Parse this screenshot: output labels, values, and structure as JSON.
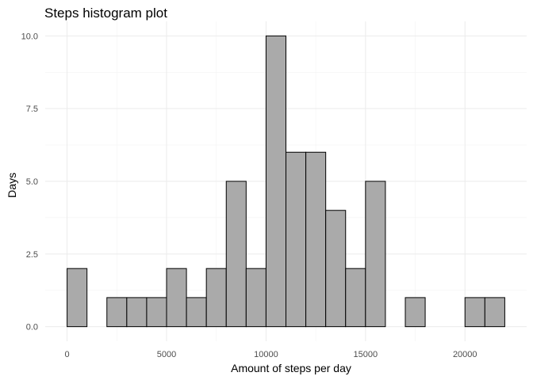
{
  "chart_data": {
    "type": "bar",
    "title": "Steps histogram plot",
    "xlabel": "Amount of steps per day",
    "ylabel": "Days",
    "bin_width": 1000,
    "bins": [
      {
        "x_start": 0,
        "x_end": 1000,
        "count": 2
      },
      {
        "x_start": 1000,
        "x_end": 2000,
        "count": 0
      },
      {
        "x_start": 2000,
        "x_end": 3000,
        "count": 1
      },
      {
        "x_start": 3000,
        "x_end": 4000,
        "count": 1
      },
      {
        "x_start": 4000,
        "x_end": 5000,
        "count": 1
      },
      {
        "x_start": 5000,
        "x_end": 6000,
        "count": 2
      },
      {
        "x_start": 6000,
        "x_end": 7000,
        "count": 1
      },
      {
        "x_start": 7000,
        "x_end": 8000,
        "count": 2
      },
      {
        "x_start": 8000,
        "x_end": 9000,
        "count": 5
      },
      {
        "x_start": 9000,
        "x_end": 10000,
        "count": 2
      },
      {
        "x_start": 10000,
        "x_end": 11000,
        "count": 10
      },
      {
        "x_start": 11000,
        "x_end": 12000,
        "count": 6
      },
      {
        "x_start": 12000,
        "x_end": 13000,
        "count": 6
      },
      {
        "x_start": 13000,
        "x_end": 14000,
        "count": 4
      },
      {
        "x_start": 14000,
        "x_end": 15000,
        "count": 2
      },
      {
        "x_start": 15000,
        "x_end": 16000,
        "count": 5
      },
      {
        "x_start": 16000,
        "x_end": 17000,
        "count": 0
      },
      {
        "x_start": 17000,
        "x_end": 18000,
        "count": 1
      },
      {
        "x_start": 18000,
        "x_end": 19000,
        "count": 0
      },
      {
        "x_start": 19000,
        "x_end": 20000,
        "count": 0
      },
      {
        "x_start": 20000,
        "x_end": 21000,
        "count": 1
      },
      {
        "x_start": 21000,
        "x_end": 22000,
        "count": 1
      }
    ],
    "xlim": [
      -1100,
      23100
    ],
    "ylim": [
      -0.5,
      10.5
    ],
    "x_ticks": [
      0,
      5000,
      10000,
      15000,
      20000
    ],
    "x_tick_labels": [
      "0",
      "5000",
      "10000",
      "15000",
      "20000"
    ],
    "y_ticks": [
      0,
      2.5,
      5,
      7.5,
      10
    ],
    "y_tick_labels": [
      "0.0",
      "2.5",
      "5.0",
      "7.5",
      "10.0"
    ],
    "grid": true,
    "bar_fill": "#aaaaaa",
    "bar_outline": "#000000"
  }
}
